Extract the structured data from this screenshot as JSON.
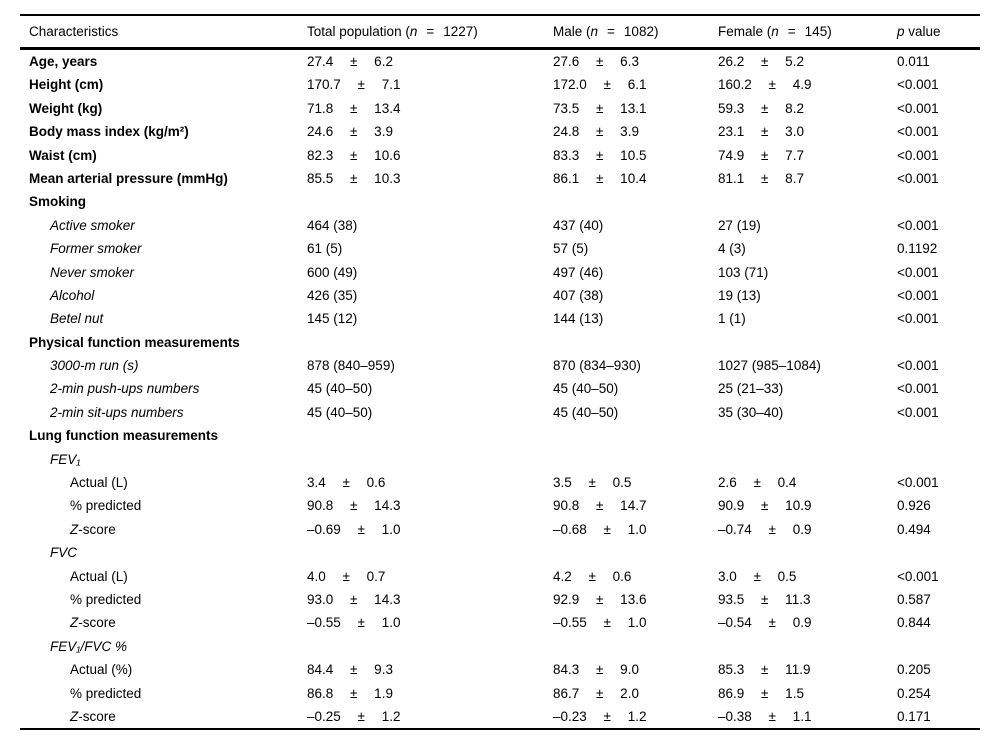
{
  "table": {
    "header": {
      "characteristics": "Characteristics",
      "groups": [
        {
          "pre": "Total population (",
          "n": "n",
          "eq": "=",
          "count": "1227)"
        },
        {
          "pre": "Male (",
          "n": "n",
          "eq": "=",
          "count": "1082)"
        },
        {
          "pre": "Female (",
          "n": "n",
          "eq": "=",
          "count": "145)"
        }
      ],
      "p_italic": "p",
      "p_rest": " value"
    },
    "rows": [
      {
        "label": "Age, years",
        "style": "bold",
        "indent": 0,
        "total": "27.4 ± 6.2",
        "male": "27.6 ± 6.3",
        "female": "26.2 ± 5.2",
        "p": "0.011"
      },
      {
        "label": "Height (cm)",
        "style": "bold",
        "indent": 0,
        "total": "170.7 ± 7.1",
        "male": "172.0 ± 6.1",
        "female": "160.2 ± 4.9",
        "p": "<0.001"
      },
      {
        "label": "Weight (kg)",
        "style": "bold",
        "indent": 0,
        "total": "71.8 ± 13.4",
        "male": "73.5 ± 13.1",
        "female": "59.3 ± 8.2",
        "p": "<0.001"
      },
      {
        "label": "Body mass index (kg/m²)",
        "style": "bold",
        "indent": 0,
        "total": "24.6 ± 3.9",
        "male": "24.8 ± 3.9",
        "female": "23.1 ± 3.0",
        "p": "<0.001"
      },
      {
        "label": "Waist (cm)",
        "style": "bold",
        "indent": 0,
        "total": "82.3 ± 10.6",
        "male": "83.3 ± 10.5",
        "female": "74.9 ± 7.7",
        "p": "<0.001"
      },
      {
        "label": "Mean arterial pressure (mmHg)",
        "style": "bold",
        "indent": 0,
        "total": "85.5 ± 10.3",
        "male": "86.1 ± 10.4",
        "female": "81.1 ± 8.7",
        "p": "<0.001"
      },
      {
        "label": "Smoking",
        "style": "bold",
        "indent": 0
      },
      {
        "label": "Active smoker",
        "style": "italic",
        "indent": 1,
        "total": "464 (38)",
        "male": "437 (40)",
        "female": "27 (19)",
        "p": "<0.001"
      },
      {
        "label": "Former smoker",
        "style": "italic",
        "indent": 1,
        "total": "61 (5)",
        "male": "57 (5)",
        "female": "4 (3)",
        "p": "0.1192"
      },
      {
        "label": "Never smoker",
        "style": "italic",
        "indent": 1,
        "total": "600 (49)",
        "male": "497 (46)",
        "female": "103 (71)",
        "p": "<0.001"
      },
      {
        "label": "Alcohol",
        "style": "italic",
        "indent": 1,
        "total": "426 (35)",
        "male": "407 (38)",
        "female": "19 (13)",
        "p": "<0.001"
      },
      {
        "label": "Betel nut",
        "style": "italic",
        "indent": 1,
        "total": "145 (12)",
        "male": "144 (13)",
        "female": "1 (1)",
        "p": "<0.001"
      },
      {
        "label": "Physical function measurements",
        "style": "bold",
        "indent": 0
      },
      {
        "label": "3000-m run (s)",
        "style": "italic",
        "indent": 1,
        "total": "878 (840–959)",
        "male": "870 (834–930)",
        "female": "1027 (985–1084)",
        "p": "<0.001"
      },
      {
        "label": "2-min push-ups numbers",
        "style": "italic",
        "indent": 1,
        "total": "45 (40–50)",
        "male": "45 (40–50)",
        "female": "25 (21–33)",
        "p": "<0.001"
      },
      {
        "label": "2-min sit-ups numbers",
        "style": "italic",
        "indent": 1,
        "total": "45 (40–50)",
        "male": "45 (40–50)",
        "female": "35 (30–40)",
        "p": "<0.001"
      },
      {
        "label": "Lung function measurements",
        "style": "bold",
        "indent": 0
      },
      {
        "label": "FEV₁",
        "style": "italic",
        "indent": 1
      },
      {
        "label": "Actual (L)",
        "style": "plain",
        "indent": 2,
        "total": "3.4 ± 0.6",
        "male": "3.5 ± 0.5",
        "female": "2.6 ± 0.4",
        "p": "<0.001"
      },
      {
        "label": "% predicted",
        "style": "plain",
        "indent": 2,
        "total": "90.8 ± 14.3",
        "male": "90.8 ± 14.7",
        "female": "90.9 ± 10.9",
        "p": "0.926"
      },
      {
        "z_prefix": "Z",
        "label": "-score",
        "style": "plain",
        "indent": 2,
        "total": "–0.69 ± 1.0",
        "male": "–0.68 ± 1.0",
        "female": "–0.74 ± 0.9",
        "p": "0.494"
      },
      {
        "label": "FVC",
        "style": "italic",
        "indent": 1
      },
      {
        "label": "Actual (L)",
        "style": "plain",
        "indent": 2,
        "total": "4.0 ± 0.7",
        "male": "4.2 ± 0.6",
        "female": "3.0 ± 0.5",
        "p": "<0.001"
      },
      {
        "label": "% predicted",
        "style": "plain",
        "indent": 2,
        "total": "93.0 ± 14.3",
        "male": "92.9 ± 13.6",
        "female": "93.5 ± 11.3",
        "p": "0.587"
      },
      {
        "z_prefix": "Z",
        "label": "-score",
        "style": "plain",
        "indent": 2,
        "total": "–0.55 ± 1.0",
        "male": "–0.55 ± 1.0",
        "female": "–0.54 ± 0.9",
        "p": "0.844"
      },
      {
        "label": "FEV₁/FVC %",
        "style": "italic",
        "indent": 1
      },
      {
        "label": "Actual (%)",
        "style": "plain",
        "indent": 2,
        "total": "84.4 ± 9.3",
        "male": "84.3 ± 9.0",
        "female": "85.3 ± 11.9",
        "p": "0.205"
      },
      {
        "label": "% predicted",
        "style": "plain",
        "indent": 2,
        "total": "86.8 ± 1.9",
        "male": "86.7 ± 2.0",
        "female": "86.9 ± 1.5",
        "p": "0.254"
      },
      {
        "z_prefix": "Z",
        "label": "-score",
        "style": "plain",
        "indent": 2,
        "total": "–0.25 ± 1.2",
        "male": "–0.23 ± 1.2",
        "female": "–0.38 ± 1.1",
        "p": "0.171"
      }
    ]
  }
}
